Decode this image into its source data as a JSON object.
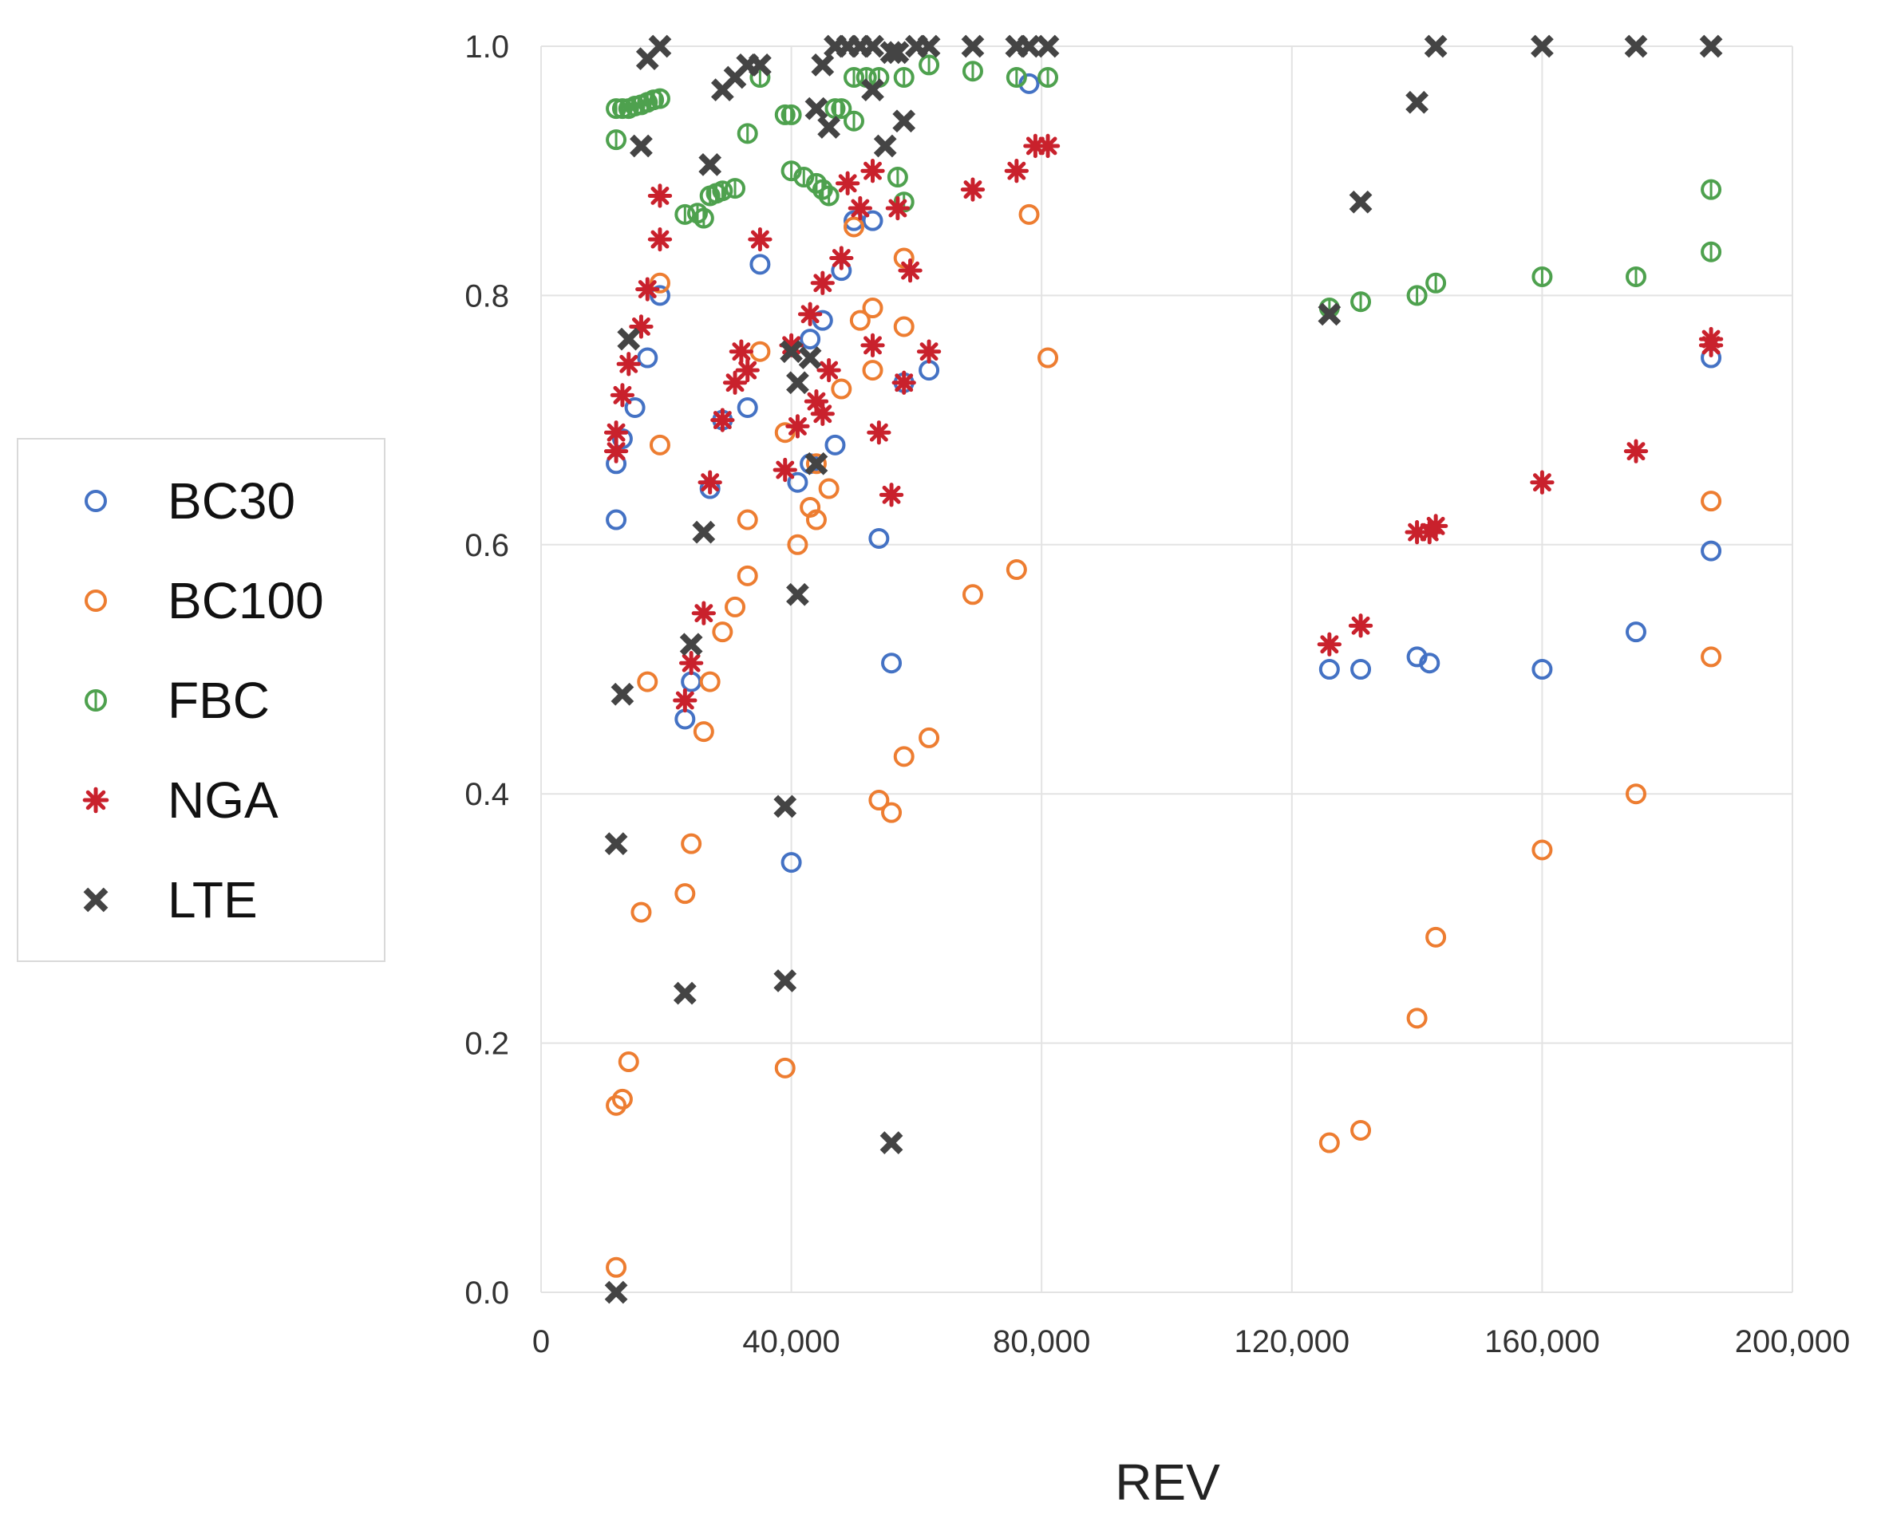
{
  "chart_data": {
    "type": "scatter",
    "title": "",
    "xlabel": "REV",
    "ylabel": "",
    "xlim": [
      0,
      200000
    ],
    "ylim": [
      0,
      1.0
    ],
    "x_ticks": [
      0,
      40000,
      80000,
      120000,
      160000,
      200000
    ],
    "x_tick_labels": [
      "0",
      "40,000",
      "80,000",
      "120,000",
      "160,000",
      "200,000"
    ],
    "y_ticks": [
      0,
      0.2,
      0.4,
      0.6,
      0.8,
      1.0
    ],
    "y_tick_labels": [
      "0.0",
      "0.2",
      "0.4",
      "0.6",
      "0.8",
      "1.0"
    ],
    "grid": true,
    "legend_position": "left",
    "series": [
      {
        "name": "BC30",
        "color": "#4472C4",
        "marker": "circle",
        "points": [
          [
            12000,
            0.62
          ],
          [
            12000,
            0.665
          ],
          [
            13000,
            0.685
          ],
          [
            15000,
            0.71
          ],
          [
            17000,
            0.75
          ],
          [
            19000,
            0.8
          ],
          [
            23000,
            0.46
          ],
          [
            24000,
            0.49
          ],
          [
            27000,
            0.645
          ],
          [
            29000,
            0.7
          ],
          [
            33000,
            0.71
          ],
          [
            35000,
            0.825
          ],
          [
            40000,
            0.345
          ],
          [
            41000,
            0.65
          ],
          [
            43000,
            0.665
          ],
          [
            43000,
            0.765
          ],
          [
            45000,
            0.78
          ],
          [
            47000,
            0.68
          ],
          [
            48000,
            0.82
          ],
          [
            50000,
            0.86
          ],
          [
            53000,
            0.86
          ],
          [
            54000,
            0.605
          ],
          [
            56000,
            0.505
          ],
          [
            58000,
            0.73
          ],
          [
            62000,
            0.74
          ],
          [
            78000,
            0.97
          ],
          [
            126000,
            0.5
          ],
          [
            131000,
            0.5
          ],
          [
            140000,
            0.51
          ],
          [
            142000,
            0.505
          ],
          [
            160000,
            0.5
          ],
          [
            175000,
            0.53
          ],
          [
            187000,
            0.595
          ],
          [
            187000,
            0.75
          ]
        ]
      },
      {
        "name": "BC100",
        "color": "#ED7D31",
        "marker": "circle",
        "points": [
          [
            12000,
            0.02
          ],
          [
            12000,
            0.15
          ],
          [
            13000,
            0.155
          ],
          [
            14000,
            0.185
          ],
          [
            16000,
            0.305
          ],
          [
            17000,
            0.49
          ],
          [
            19000,
            0.68
          ],
          [
            19000,
            0.81
          ],
          [
            23000,
            0.32
          ],
          [
            24000,
            0.36
          ],
          [
            26000,
            0.45
          ],
          [
            27000,
            0.49
          ],
          [
            29000,
            0.53
          ],
          [
            31000,
            0.55
          ],
          [
            33000,
            0.575
          ],
          [
            33000,
            0.62
          ],
          [
            35000,
            0.755
          ],
          [
            39000,
            0.18
          ],
          [
            39000,
            0.69
          ],
          [
            41000,
            0.6
          ],
          [
            43000,
            0.63
          ],
          [
            44000,
            0.62
          ],
          [
            44000,
            0.665
          ],
          [
            46000,
            0.645
          ],
          [
            48000,
            0.725
          ],
          [
            50000,
            0.855
          ],
          [
            51000,
            0.78
          ],
          [
            53000,
            0.74
          ],
          [
            53000,
            0.79
          ],
          [
            54000,
            0.395
          ],
          [
            56000,
            0.385
          ],
          [
            58000,
            0.43
          ],
          [
            58000,
            0.775
          ],
          [
            58000,
            0.83
          ],
          [
            62000,
            0.445
          ],
          [
            69000,
            0.56
          ],
          [
            76000,
            0.58
          ],
          [
            78000,
            0.865
          ],
          [
            81000,
            0.75
          ],
          [
            126000,
            0.12
          ],
          [
            131000,
            0.13
          ],
          [
            140000,
            0.22
          ],
          [
            143000,
            0.285
          ],
          [
            160000,
            0.355
          ],
          [
            175000,
            0.4
          ],
          [
            187000,
            0.51
          ],
          [
            187000,
            0.635
          ]
        ]
      },
      {
        "name": "FBC",
        "color": "#4EA14E",
        "marker": "circle-line",
        "points": [
          [
            12000,
            0.925
          ],
          [
            12000,
            0.95
          ],
          [
            13000,
            0.95
          ],
          [
            14000,
            0.95
          ],
          [
            15000,
            0.952
          ],
          [
            16000,
            0.953
          ],
          [
            17000,
            0.955
          ],
          [
            18000,
            0.957
          ],
          [
            19000,
            0.958
          ],
          [
            23000,
            0.865
          ],
          [
            25000,
            0.866
          ],
          [
            26000,
            0.862
          ],
          [
            27000,
            0.88
          ],
          [
            28000,
            0.882
          ],
          [
            29000,
            0.884
          ],
          [
            31000,
            0.886
          ],
          [
            33000,
            0.93
          ],
          [
            35000,
            0.975
          ],
          [
            39000,
            0.945
          ],
          [
            40000,
            0.945
          ],
          [
            40000,
            0.9
          ],
          [
            42000,
            0.895
          ],
          [
            44000,
            0.89
          ],
          [
            45000,
            0.885
          ],
          [
            46000,
            0.88
          ],
          [
            47000,
            0.95
          ],
          [
            48000,
            0.95
          ],
          [
            50000,
            0.94
          ],
          [
            50000,
            0.975
          ],
          [
            52000,
            0.975
          ],
          [
            54000,
            0.975
          ],
          [
            57000,
            0.895
          ],
          [
            58000,
            0.875
          ],
          [
            58000,
            0.975
          ],
          [
            62000,
            0.985
          ],
          [
            69000,
            0.98
          ],
          [
            76000,
            0.975
          ],
          [
            81000,
            0.975
          ],
          [
            126000,
            0.79
          ],
          [
            131000,
            0.795
          ],
          [
            140000,
            0.8
          ],
          [
            143000,
            0.81
          ],
          [
            160000,
            0.815
          ],
          [
            175000,
            0.815
          ],
          [
            187000,
            0.835
          ],
          [
            187000,
            0.885
          ]
        ]
      },
      {
        "name": "NGA",
        "color": "#C9212C",
        "marker": "asterisk",
        "points": [
          [
            12000,
            0.675
          ],
          [
            12000,
            0.69
          ],
          [
            13000,
            0.72
          ],
          [
            14000,
            0.745
          ],
          [
            16000,
            0.775
          ],
          [
            17000,
            0.805
          ],
          [
            19000,
            0.845
          ],
          [
            19000,
            0.88
          ],
          [
            23000,
            0.475
          ],
          [
            24000,
            0.505
          ],
          [
            26000,
            0.545
          ],
          [
            27000,
            0.65
          ],
          [
            29000,
            0.7
          ],
          [
            31000,
            0.73
          ],
          [
            32000,
            0.755
          ],
          [
            33000,
            0.74
          ],
          [
            35000,
            0.845
          ],
          [
            39000,
            0.66
          ],
          [
            40000,
            0.76
          ],
          [
            41000,
            0.695
          ],
          [
            43000,
            0.785
          ],
          [
            44000,
            0.715
          ],
          [
            45000,
            0.705
          ],
          [
            45000,
            0.81
          ],
          [
            46000,
            0.74
          ],
          [
            48000,
            0.83
          ],
          [
            49000,
            0.89
          ],
          [
            51000,
            0.87
          ],
          [
            53000,
            0.9
          ],
          [
            53000,
            0.76
          ],
          [
            54000,
            0.69
          ],
          [
            56000,
            0.64
          ],
          [
            57000,
            0.87
          ],
          [
            58000,
            0.73
          ],
          [
            59000,
            0.82
          ],
          [
            62000,
            0.755
          ],
          [
            69000,
            0.885
          ],
          [
            76000,
            0.9
          ],
          [
            79000,
            0.92
          ],
          [
            81000,
            0.92
          ],
          [
            126000,
            0.52
          ],
          [
            131000,
            0.535
          ],
          [
            140000,
            0.61
          ],
          [
            142000,
            0.61
          ],
          [
            143000,
            0.615
          ],
          [
            160000,
            0.65
          ],
          [
            175000,
            0.675
          ],
          [
            187000,
            0.76
          ],
          [
            187000,
            0.765
          ]
        ]
      },
      {
        "name": "LTE",
        "color": "#444444",
        "marker": "x",
        "points": [
          [
            12000,
            0.0
          ],
          [
            12000,
            0.36
          ],
          [
            13000,
            0.48
          ],
          [
            14000,
            0.765
          ],
          [
            16000,
            0.92
          ],
          [
            17000,
            0.99
          ],
          [
            19000,
            1.0
          ],
          [
            23000,
            0.24
          ],
          [
            24000,
            0.52
          ],
          [
            26000,
            0.61
          ],
          [
            27000,
            0.905
          ],
          [
            29000,
            0.965
          ],
          [
            31000,
            0.975
          ],
          [
            33000,
            0.985
          ],
          [
            35000,
            0.985
          ],
          [
            39000,
            0.25
          ],
          [
            39000,
            0.39
          ],
          [
            40000,
            0.755
          ],
          [
            41000,
            0.73
          ],
          [
            41000,
            0.56
          ],
          [
            43000,
            0.75
          ],
          [
            44000,
            0.665
          ],
          [
            44000,
            0.95
          ],
          [
            45000,
            0.985
          ],
          [
            46000,
            0.935
          ],
          [
            47000,
            1.0
          ],
          [
            49000,
            1.0
          ],
          [
            51000,
            1.0
          ],
          [
            53000,
            0.965
          ],
          [
            53000,
            1.0
          ],
          [
            55000,
            0.92
          ],
          [
            56000,
            0.12
          ],
          [
            56000,
            0.995
          ],
          [
            57000,
            0.995
          ],
          [
            58000,
            0.94
          ],
          [
            60000,
            1.0
          ],
          [
            62000,
            1.0
          ],
          [
            69000,
            1.0
          ],
          [
            76000,
            1.0
          ],
          [
            78000,
            1.0
          ],
          [
            81000,
            1.0
          ],
          [
            126000,
            0.785
          ],
          [
            131000,
            0.875
          ],
          [
            140000,
            0.955
          ],
          [
            143000,
            1.0
          ],
          [
            160000,
            1.0
          ],
          [
            175000,
            1.0
          ],
          [
            187000,
            1.0
          ]
        ]
      }
    ]
  }
}
